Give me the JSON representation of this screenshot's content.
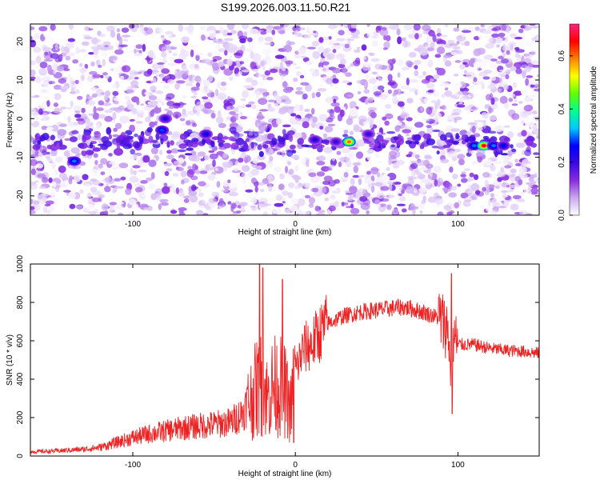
{
  "chart_data": [
    {
      "type": "heatmap",
      "title": "S199.2026.003.11.50.R21",
      "xlabel": "Height of straight line (km)",
      "ylabel": "Frequency (Hz)",
      "xlim": [
        -163,
        150
      ],
      "ylim": [
        -25,
        24.5
      ],
      "xticks": [
        -100,
        0,
        100
      ],
      "xtick_labels": [
        "-100",
        "0",
        "100"
      ],
      "yticks": [
        -20,
        -10,
        0,
        10,
        20
      ],
      "ytick_labels": [
        "-20",
        "-10",
        "0",
        "10",
        "20"
      ],
      "colorbar": {
        "label": "Normalized spectral amplitude",
        "range": [
          0,
          0.72
        ],
        "ticks": [
          0,
          0.2,
          0.4,
          0.6
        ],
        "tick_labels": [
          "0.0",
          "0.2",
          "0.4",
          "0.6"
        ],
        "colormap": [
          "#ffffff",
          "#c9a8f0",
          "#8a2be2",
          "#3a0ae0",
          "#0000ff",
          "#00c8ff",
          "#00ff90",
          "#60ff00",
          "#ffff00",
          "#ff8000",
          "#ff0000",
          "#ff2080"
        ]
      },
      "hotspots": [
        {
          "x": -136,
          "y": -11,
          "value": 0.3
        },
        {
          "x": -82,
          "y": -3,
          "value": 0.28
        },
        {
          "x": -80,
          "y": 0,
          "value": 0.22
        },
        {
          "x": -55,
          "y": -4,
          "value": 0.24
        },
        {
          "x": 12,
          "y": -5.5,
          "value": 0.22
        },
        {
          "x": 25,
          "y": -6,
          "value": 0.2
        },
        {
          "x": 33,
          "y": -6,
          "value": 0.6
        },
        {
          "x": 45,
          "y": -4,
          "value": 0.2
        },
        {
          "x": 110,
          "y": -7,
          "value": 0.3
        },
        {
          "x": 116,
          "y": -7,
          "value": 0.66
        },
        {
          "x": 122,
          "y": -7,
          "value": 0.3
        },
        {
          "x": 128,
          "y": -7,
          "value": 0.25
        }
      ]
    },
    {
      "type": "line",
      "xlabel": "Height of straight line (km)",
      "ylabel": "SNR (10 * v/v)",
      "xlim": [
        -163,
        150
      ],
      "ylim": [
        0,
        1000
      ],
      "xticks": [
        -100,
        0,
        100
      ],
      "xtick_labels": [
        "-100",
        "0",
        "100"
      ],
      "yticks": [
        0,
        200,
        400,
        600,
        800,
        1000
      ],
      "ytick_labels": [
        "0",
        "200",
        "400",
        "600",
        "800",
        "1000"
      ],
      "series": [
        {
          "name": "SNR",
          "color": "#ee2222",
          "x": [
            -163,
            -150,
            -140,
            -130,
            -120,
            -110,
            -100,
            -90,
            -80,
            -70,
            -60,
            -50,
            -40,
            -33,
            -28,
            -24,
            -20,
            -17,
            -14,
            -10,
            -6,
            -3,
            0,
            5,
            10,
            15,
            20,
            30,
            40,
            50,
            60,
            65,
            70,
            80,
            88,
            94,
            96,
            97,
            98,
            100,
            110,
            120,
            130,
            140,
            150
          ],
          "values": [
            22,
            25,
            30,
            35,
            45,
            70,
            95,
            115,
            130,
            145,
            155,
            165,
            175,
            220,
            290,
            350,
            380,
            300,
            360,
            370,
            330,
            230,
            440,
            560,
            580,
            640,
            690,
            730,
            750,
            760,
            770,
            775,
            770,
            745,
            720,
            660,
            360,
            600,
            620,
            580,
            580,
            560,
            550,
            545,
            535
          ]
        }
      ],
      "spikes": [
        {
          "x": -22,
          "value": 1000
        },
        {
          "x": -20,
          "value": 980
        },
        {
          "x": -8,
          "value": 920
        },
        {
          "x": -1,
          "value": 70
        },
        {
          "x": 96,
          "value": 950
        },
        {
          "x": 96.5,
          "value": 220
        }
      ]
    }
  ]
}
